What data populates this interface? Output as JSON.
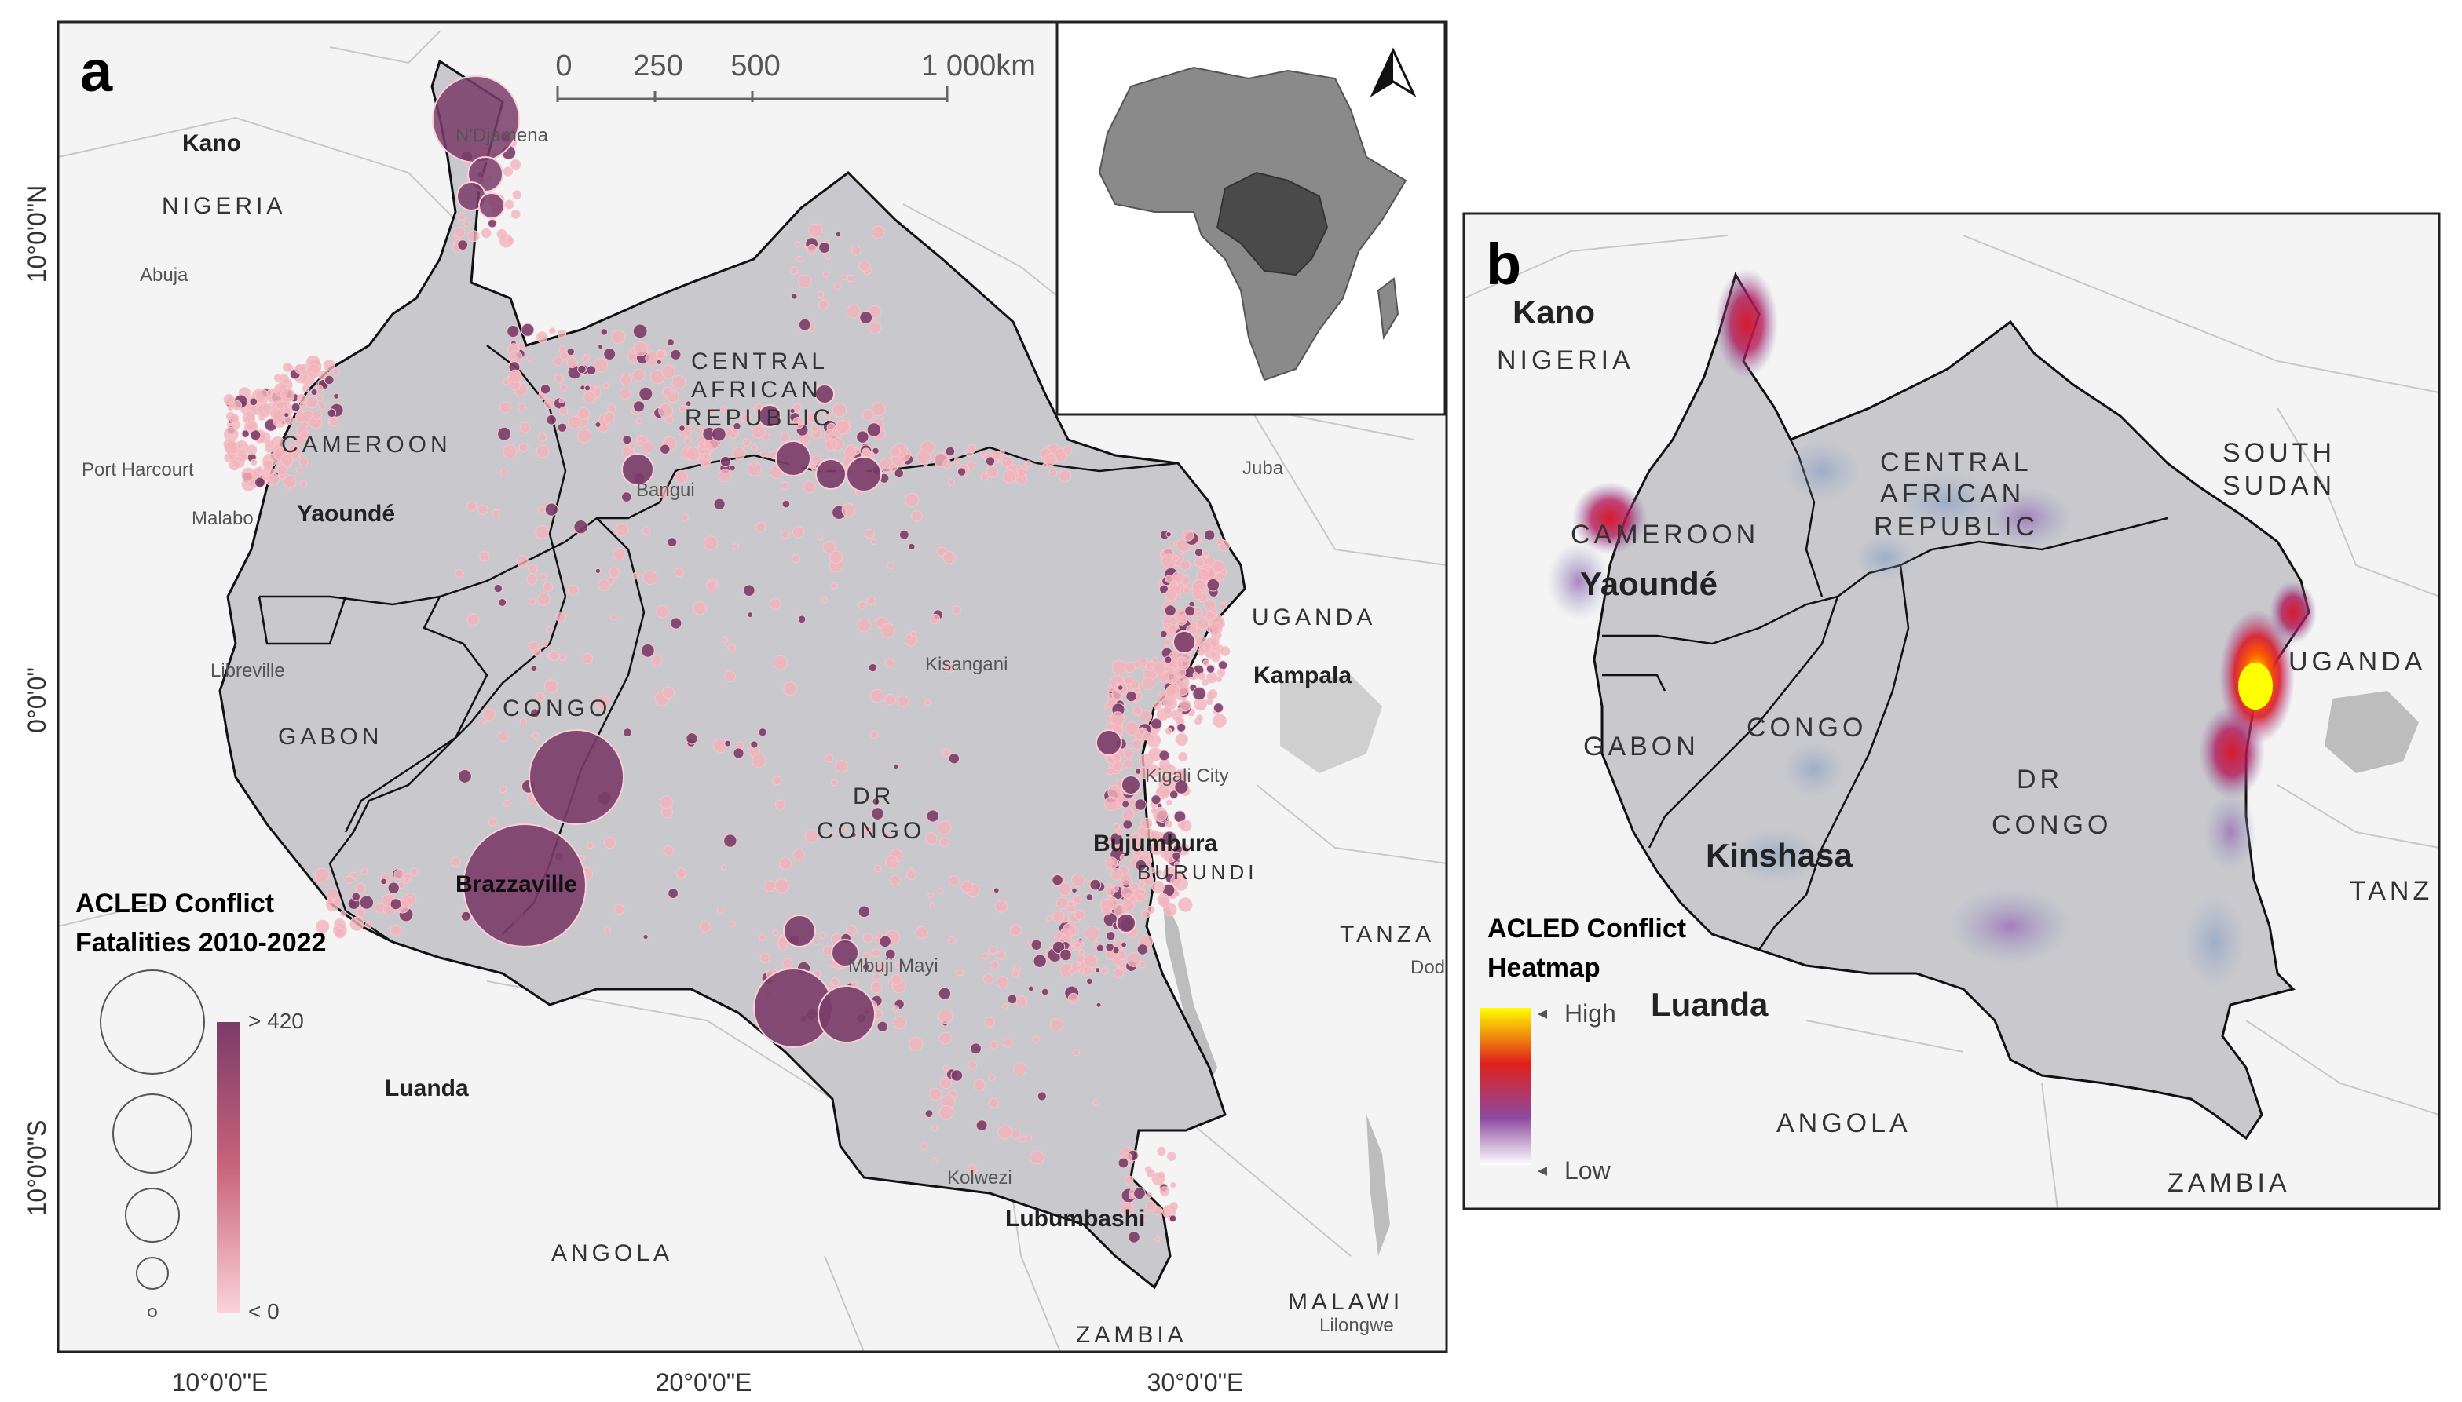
{
  "panel_a": {
    "letter": "a",
    "scale_bar": {
      "ticks": [
        "0",
        "250",
        "500",
        "1 000km"
      ]
    },
    "axis": {
      "lat_labels": [
        "10°0'0\"N",
        "0°0'0\"",
        "10°0'0\"S"
      ],
      "lon_labels": [
        "10°0'0\"E",
        "20°0'0\"E",
        "30°0'0\"E"
      ]
    },
    "countries": {
      "nigeria": "NIGERIA",
      "cameroon": "CAMEROON",
      "car_line1": "CENTRAL",
      "car_line2": "AFRICAN",
      "car_line3": "REPUBLIC",
      "gabon": "GABON",
      "congo": "CONGO",
      "drc_line1": "DR",
      "drc_line2": "CONGO",
      "uganda": "UGANDA",
      "burundi": "BURUNDI",
      "angola": "ANGOLA",
      "zambia": "ZAMBIA",
      "malawi": "MALAWI",
      "tanzania_partial": "TANZA"
    },
    "cities_bold": {
      "kano": "Kano",
      "yaounde": "Yaoundé",
      "kampala": "Kampala",
      "bujumbura": "Bujumbura",
      "brazzaville": "Brazzaville",
      "luanda": "Luanda",
      "lubumbashi": "Lubumbashi"
    },
    "cities_small": {
      "ndjamena": "N'Djamena",
      "abuja": "Abuja",
      "port_harcourt": "Port Harcourt",
      "malabo": "Malabo",
      "bangui": "Bangui",
      "juba": "Juba",
      "libreville": "Libreville",
      "kisangani": "Kisangani",
      "kigali": "Kigali City",
      "mbuji_mayi": "Mbuji Mayi",
      "kolwezi": "Kolwezi",
      "lilongwe": "Lilongwe",
      "dodoma_partial": "Dod"
    },
    "legend": {
      "title_line1": "ACLED Conflict",
      "title_line2": "Fatalities 2010-2022",
      "max_label": "> 420",
      "min_label": "< 0"
    }
  },
  "panel_b": {
    "letter": "b",
    "countries": {
      "nigeria": "NIGERIA",
      "cameroon": "CAMEROON",
      "car_line1": "CENTRAL",
      "car_line2": "AFRICAN",
      "car_line3": "REPUBLIC",
      "south_sudan_line1": "SOUTH",
      "south_sudan_line2": "SUDAN",
      "gabon": "GABON",
      "congo": "CONGO",
      "drc_line1": "DR",
      "drc_line2": "CONGO",
      "uganda": "UGANDA",
      "angola": "ANGOLA",
      "zambia": "ZAMBIA",
      "tanzania_partial": "TANZ"
    },
    "cities": {
      "kano": "Kano",
      "yaounde": "Yaoundé",
      "kinshasa": "Kinshasa",
      "luanda": "Luanda"
    },
    "legend": {
      "title_line1": "ACLED Conflict",
      "title_line2": "Heatmap",
      "high": "High",
      "low": "Low"
    }
  },
  "colors": {
    "region_fill": "#c9c9cd",
    "background_land": "#f4f4f4",
    "water": "#dcdcdc",
    "event_light": "#f3b3bb",
    "event_dark": "#7a3c68",
    "heat_high": "#ffff00",
    "heat_mid": "#e0201a",
    "heat_low": "#8d4aa0",
    "inset_focus": "#555555",
    "inset_africa": "#8a8a8a"
  }
}
